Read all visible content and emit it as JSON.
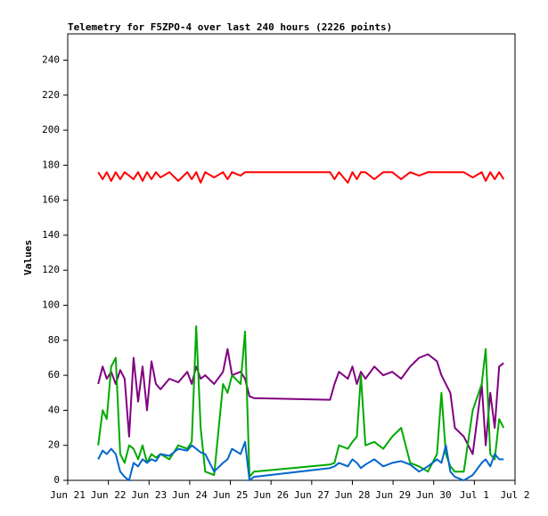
{
  "chart_data": {
    "type": "line",
    "title": "Telemetry for F5ZPO-4 over last 240 hours (2226 points)",
    "y_label": "Values",
    "x": [
      0.75,
      0.86,
      0.96,
      1.07,
      1.18,
      1.29,
      1.4,
      1.51,
      1.62,
      1.73,
      1.84,
      1.95,
      2.06,
      2.17,
      2.28,
      2.5,
      2.72,
      2.94,
      3.05,
      3.16,
      3.27,
      3.38,
      3.6,
      3.82,
      3.93,
      4.04,
      4.25,
      4.36,
      4.47,
      4.58,
      6.45,
      6.56,
      6.67,
      6.89,
      7.0,
      7.11,
      7.21,
      7.32,
      7.54,
      7.76,
      7.98,
      8.2,
      8.42,
      8.64,
      8.86,
      9.08,
      9.19,
      9.3,
      9.41,
      9.52,
      9.74,
      9.96,
      10.18,
      10.28,
      10.39,
      10.5,
      10.61,
      10.72
    ],
    "series": [
      {
        "color": "#ff0000",
        "values": [
          176,
          172,
          176,
          171,
          176,
          172,
          176,
          174,
          172,
          176,
          171,
          176,
          172,
          176,
          173,
          176,
          171,
          176,
          172,
          176,
          170,
          176,
          173,
          176,
          172,
          176,
          174,
          176,
          176,
          176,
          176,
          172,
          176,
          170,
          176,
          172,
          176,
          176,
          172,
          176,
          176,
          172,
          176,
          174,
          176,
          176,
          176,
          176,
          176,
          176,
          176,
          173,
          176,
          171,
          176,
          172,
          176,
          172
        ]
      },
      {
        "color": "#800080",
        "values": [
          55,
          65,
          58,
          62,
          55,
          63,
          58,
          25,
          70,
          45,
          65,
          40,
          68,
          55,
          52,
          58,
          56,
          62,
          55,
          65,
          58,
          60,
          55,
          62,
          75,
          60,
          62,
          58,
          48,
          47,
          46,
          55,
          62,
          58,
          65,
          55,
          62,
          58,
          65,
          60,
          62,
          58,
          65,
          70,
          72,
          68,
          60,
          55,
          50,
          30,
          25,
          15,
          55,
          20,
          50,
          30,
          65,
          67
        ]
      },
      {
        "color": "#00aa00",
        "values": [
          20,
          40,
          35,
          65,
          70,
          15,
          10,
          20,
          18,
          12,
          20,
          10,
          15,
          13,
          15,
          12,
          20,
          18,
          22,
          88,
          30,
          5,
          3,
          55,
          50,
          60,
          55,
          85,
          2,
          5,
          9,
          10,
          20,
          18,
          22,
          25,
          60,
          20,
          22,
          18,
          25,
          30,
          10,
          8,
          5,
          15,
          50,
          15,
          8,
          5,
          5,
          40,
          55,
          75,
          15,
          12,
          35,
          30
        ]
      },
      {
        "color": "#0066cc",
        "values": [
          12,
          17,
          15,
          18,
          15,
          5,
          2,
          0,
          10,
          8,
          12,
          10,
          12,
          11,
          15,
          14,
          18,
          17,
          20,
          18,
          16,
          15,
          5,
          10,
          12,
          18,
          15,
          22,
          0,
          2,
          7,
          8,
          10,
          8,
          12,
          10,
          7,
          9,
          12,
          8,
          10,
          11,
          9,
          5,
          8,
          12,
          10,
          20,
          5,
          2,
          0,
          3,
          10,
          12,
          8,
          15,
          12,
          12
        ]
      }
    ],
    "xlim": [
      0,
      11
    ],
    "xticks": [
      {
        "value": 0,
        "label": "Jun 21"
      },
      {
        "value": 1,
        "label": "Jun 22"
      },
      {
        "value": 2,
        "label": "Jun 23"
      },
      {
        "value": 3,
        "label": "Jun 24"
      },
      {
        "value": 4,
        "label": "Jun 25"
      },
      {
        "value": 5,
        "label": "Jun 26"
      },
      {
        "value": 6,
        "label": "Jun 27"
      },
      {
        "value": 7,
        "label": "Jun 28"
      },
      {
        "value": 8,
        "label": "Jun 29"
      },
      {
        "value": 9,
        "label": "Jun 30"
      },
      {
        "value": 10,
        "label": "Jul 1"
      },
      {
        "value": 11,
        "label": "Jul 2"
      }
    ],
    "ylim": [
      0,
      255
    ],
    "yticks": [
      0,
      20,
      40,
      60,
      80,
      100,
      120,
      140,
      160,
      180,
      200,
      220,
      240
    ]
  }
}
